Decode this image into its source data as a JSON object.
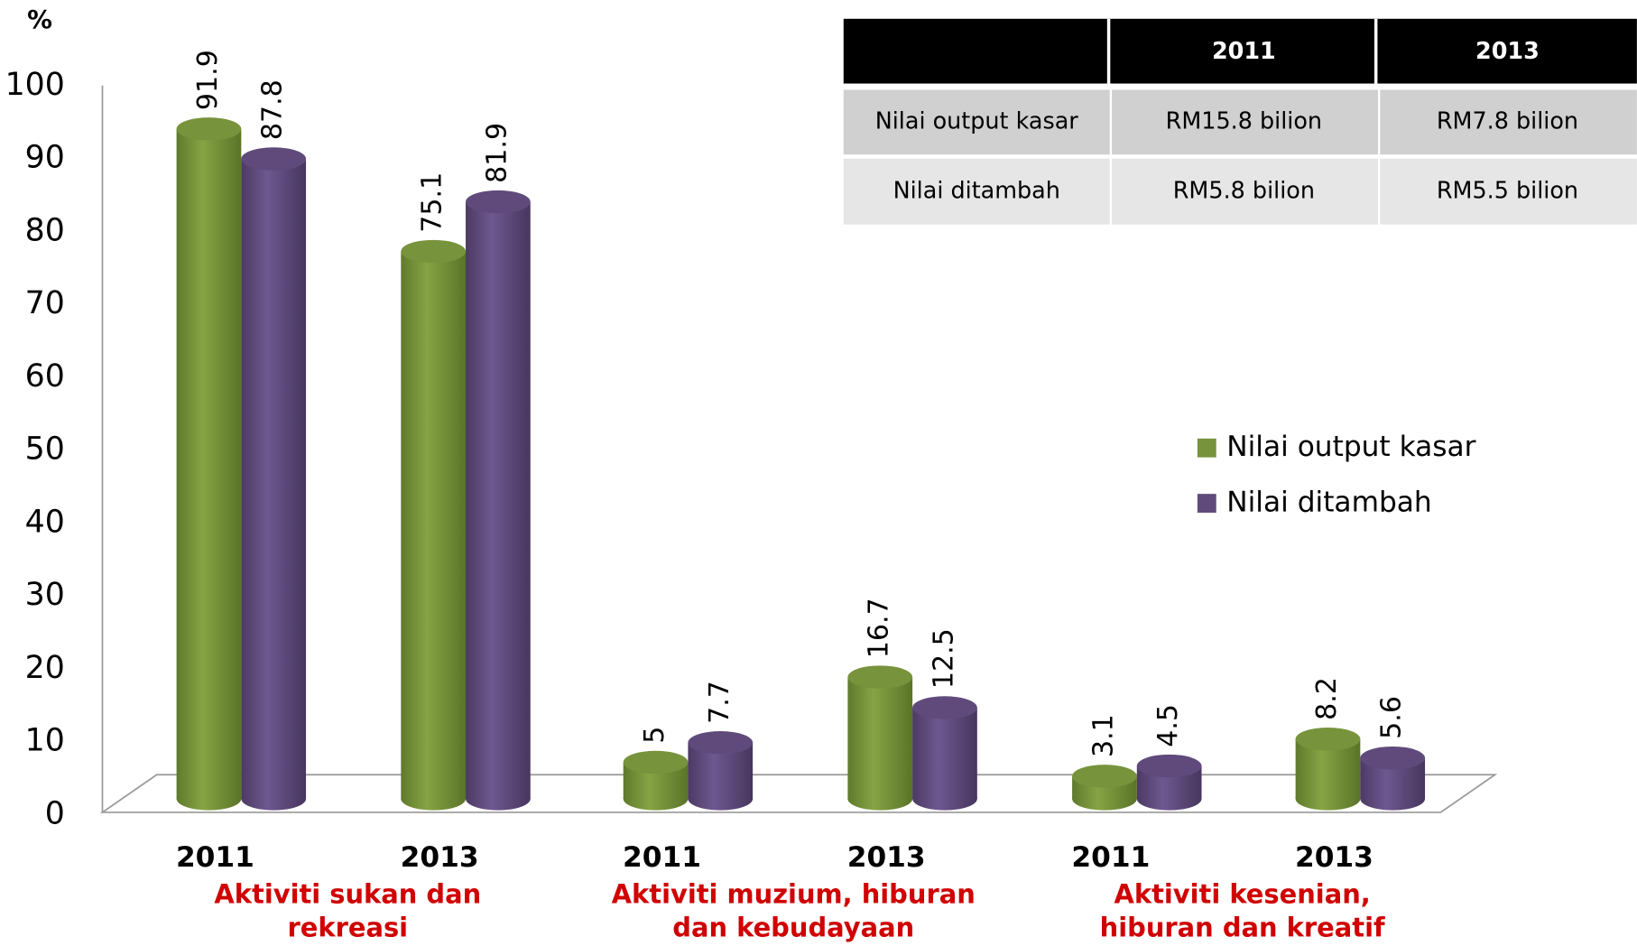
{
  "chart_data": {
    "type": "bar",
    "ylabel": "%",
    "categories": [
      "2011",
      "2013",
      "2011",
      "2013",
      "2011",
      "2013"
    ],
    "groups": [
      {
        "lines": [
          "Aktiviti sukan dan",
          "rekreasi"
        ]
      },
      {
        "lines": [
          "Aktiviti muzium, hiburan",
          "dan kebudayaan"
        ]
      },
      {
        "lines": [
          "Aktiviti kesenian,",
          "hiburan dan kreatif"
        ]
      }
    ],
    "series": [
      {
        "name": "Nilai output kasar",
        "color": "#77933c",
        "values": [
          91.9,
          75.1,
          5,
          16.7,
          3.1,
          8.2
        ]
      },
      {
        "name": "Nilai ditambah",
        "color": "#604a7b",
        "values": [
          87.8,
          81.9,
          7.7,
          12.5,
          4.5,
          5.6
        ]
      }
    ],
    "ylim": [
      0,
      100
    ],
    "yticks": [
      0,
      10,
      20,
      30,
      40,
      50,
      60,
      70,
      80,
      90,
      100
    ],
    "grid": false,
    "legend": "right"
  },
  "table": {
    "header": [
      "2011",
      "2013"
    ],
    "rows": [
      [
        "Nilai output kasar",
        "RM15.8 bilion",
        "RM7.8 bilion"
      ],
      [
        "Nilai ditambah",
        "RM5.8 bilion",
        "RM5.5 bilion"
      ]
    ]
  }
}
